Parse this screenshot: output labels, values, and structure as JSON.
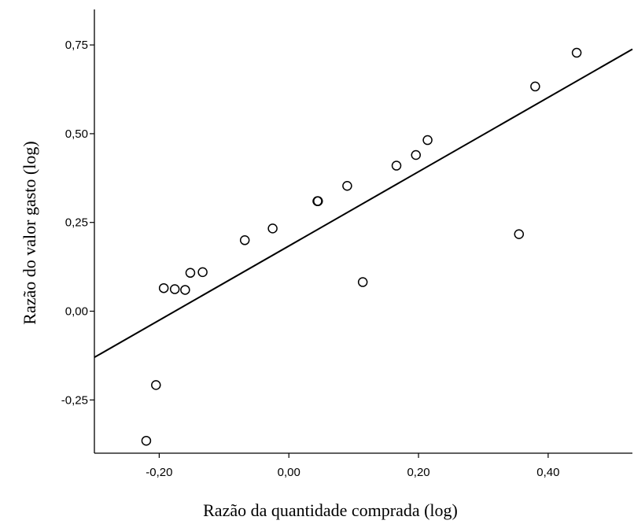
{
  "chart_data": {
    "type": "scatter",
    "title": "",
    "xlabel": "Razão da quantidade comprada (log)",
    "ylabel": "Razão do valor gasto (log)",
    "xlim": [
      -0.3,
      0.53
    ],
    "ylim": [
      -0.4,
      0.85
    ],
    "x_ticks": [
      -0.2,
      0.0,
      0.2,
      0.4
    ],
    "x_tick_labels": [
      "-0,20",
      "0,00",
      "0,20",
      "0,40"
    ],
    "y_ticks": [
      -0.25,
      0.0,
      0.25,
      0.5,
      0.75
    ],
    "y_tick_labels": [
      "-0,25",
      "0,00",
      "0,25",
      "0,50",
      "0,75"
    ],
    "grid": false,
    "legend": "none",
    "series": [
      {
        "x": [
          -0.22,
          -0.205,
          -0.193,
          -0.176,
          -0.16,
          -0.152,
          -0.133,
          -0.068,
          -0.025,
          0.044,
          0.045,
          0.09,
          0.114,
          0.166,
          0.196,
          0.214,
          0.355,
          0.38,
          0.444
        ],
        "y": [
          -0.365,
          -0.208,
          0.065,
          0.062,
          0.06,
          0.108,
          0.11,
          0.2,
          0.233,
          0.31,
          0.31,
          0.353,
          0.082,
          0.41,
          0.44,
          0.482,
          0.217,
          0.633,
          0.728
        ]
      }
    ],
    "fit_line": {
      "x": [
        -0.3,
        0.53
      ],
      "y": [
        -0.13,
        0.738
      ]
    },
    "marker_color": "#000000",
    "line_color": "#000000"
  }
}
